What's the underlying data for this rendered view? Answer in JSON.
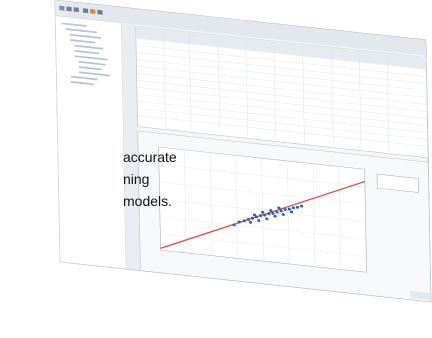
{
  "caption_lines": [
    "accurate",
    "ning",
    "models."
  ]
}
